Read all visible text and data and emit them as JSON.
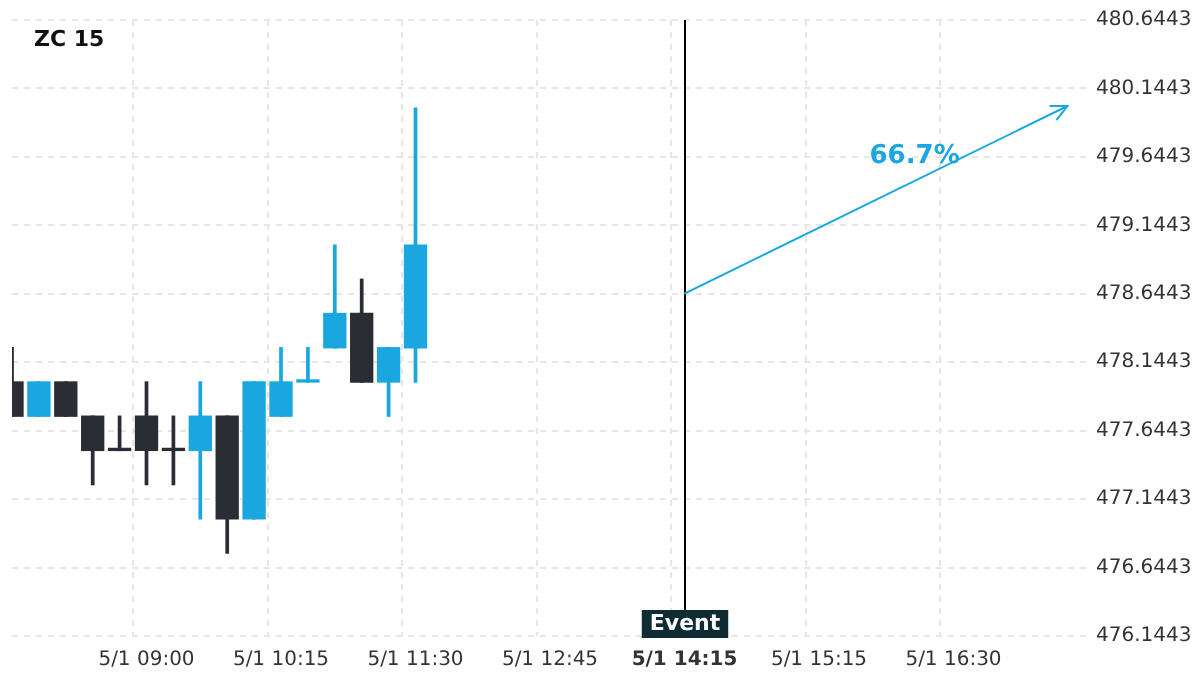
{
  "chart_data": {
    "type": "candlestick",
    "title": "ZC 15",
    "categories": [
      null,
      null,
      null,
      null,
      null,
      "5/1 09:00",
      null,
      null,
      null,
      null,
      "5/1 10:15",
      null,
      null,
      null,
      null,
      "5/1 11:30",
      null,
      null,
      null,
      null,
      "5/1 12:45",
      null,
      null,
      null,
      null,
      "5/1 14:15",
      null,
      null,
      null,
      null,
      "5/1 15:15",
      null,
      null,
      null,
      null,
      "5/1 16:30",
      null,
      null,
      null,
      null,
      null
    ],
    "ohlc": [
      [
        478.0,
        478.25,
        477.75,
        477.75
      ],
      [
        477.75,
        478.0,
        477.75,
        478.0
      ],
      [
        478.0,
        478.0,
        477.75,
        477.75
      ],
      [
        477.75,
        477.75,
        477.25,
        477.5
      ],
      [
        477.5,
        477.75,
        477.5,
        477.5
      ],
      [
        477.75,
        478.0,
        477.25,
        477.5
      ],
      [
        477.5,
        477.75,
        477.25,
        477.5
      ],
      [
        477.5,
        478.0,
        477.0,
        477.75
      ],
      [
        477.75,
        477.75,
        476.75,
        477.0
      ],
      [
        477.0,
        478.0,
        477.0,
        478.0
      ],
      [
        477.75,
        478.25,
        477.75,
        478.0
      ],
      [
        478.0,
        478.25,
        478.0,
        478.0
      ],
      [
        478.25,
        479.0,
        478.25,
        478.5
      ],
      [
        478.5,
        478.75,
        478.0,
        478.0
      ],
      [
        478.0,
        478.25,
        477.75,
        478.25
      ],
      [
        478.25,
        480.0,
        478.0,
        479.0
      ],
      null,
      null,
      null,
      null,
      null,
      null,
      null,
      null,
      null,
      null,
      null,
      null,
      null,
      null,
      null,
      null,
      null,
      null,
      null,
      null,
      null,
      null,
      null,
      null,
      null
    ],
    "colors": [
      "#2b2d35",
      "#1aa7e0",
      "#2b2d35",
      "#2b2d35",
      "#2b2d35",
      "#2b2d35",
      "#2b2d35",
      "#1aa7e0",
      "#2b2d35",
      "#1aa7e0",
      "#1aa7e0",
      "#1aa7e0",
      "#1aa7e0",
      "#2b2d35",
      "#1aa7e0",
      "#1aa7e0",
      null,
      null,
      null,
      null,
      null,
      null,
      null,
      null,
      null,
      null,
      null,
      null,
      null,
      null,
      null,
      null,
      null,
      null,
      null,
      null,
      null,
      null,
      null,
      null,
      null
    ],
    "ylim": [
      476.1443,
      480.6443
    ],
    "yticks": [
      476.1443,
      476.6443,
      477.1443,
      477.6443,
      478.1443,
      478.6443,
      479.1443,
      479.6443,
      480.1443,
      480.6443
    ],
    "grid": true,
    "ref_lines": [
      {
        "axis": "x",
        "value": "5/1 14:15",
        "label": "Event",
        "color": "#000000"
      }
    ],
    "annotations": [
      "66.7%"
    ]
  }
}
